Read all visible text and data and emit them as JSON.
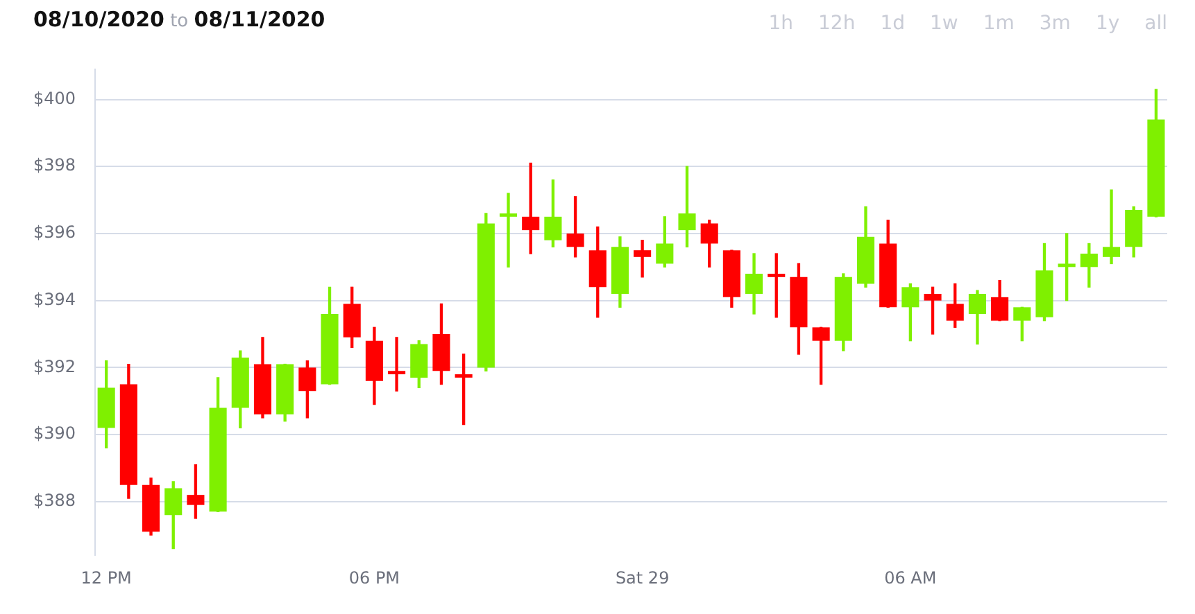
{
  "chart_data": {
    "type": "candlestick",
    "title": "08/10/2020 to 08/11/2020",
    "annotations": [
      "1h",
      "12h",
      "1d",
      "1w",
      "1m",
      "3m",
      "1y",
      "all"
    ],
    "categories": [
      "12 PM",
      null,
      null,
      null,
      null,
      null,
      null,
      null,
      null,
      null,
      null,
      null,
      "06 PM",
      null,
      null,
      null,
      null,
      null,
      null,
      null,
      null,
      null,
      null,
      null,
      "Sat 29",
      null,
      null,
      null,
      null,
      null,
      null,
      null,
      null,
      null,
      null,
      null,
      "06 AM",
      null,
      null,
      null,
      null,
      null,
      null,
      null,
      null,
      null,
      null,
      null
    ],
    "ohlc": [
      [
        390.2,
        392.2,
        389.6,
        391.4
      ],
      [
        391.5,
        392.1,
        388.1,
        388.5
      ],
      [
        388.5,
        388.7,
        387.0,
        387.1
      ],
      [
        387.6,
        388.6,
        386.6,
        388.4
      ],
      [
        388.2,
        389.1,
        387.5,
        387.9
      ],
      [
        387.7,
        391.7,
        387.7,
        390.8
      ],
      [
        390.8,
        392.5,
        390.2,
        392.3
      ],
      [
        392.1,
        392.9,
        390.5,
        390.6
      ],
      [
        390.6,
        392.1,
        390.4,
        392.1
      ],
      [
        392.0,
        392.2,
        390.5,
        391.3
      ],
      [
        391.5,
        394.4,
        391.5,
        393.6
      ],
      [
        393.9,
        394.4,
        392.6,
        392.9
      ],
      [
        392.8,
        393.2,
        390.9,
        391.6
      ],
      [
        391.9,
        392.9,
        391.3,
        391.8
      ],
      [
        391.7,
        392.8,
        391.4,
        392.7
      ],
      [
        393.0,
        393.9,
        391.5,
        391.9
      ],
      [
        391.8,
        392.4,
        390.3,
        391.7
      ],
      [
        392.0,
        396.6,
        391.9,
        396.3
      ],
      [
        396.5,
        397.2,
        395.0,
        396.6
      ],
      [
        396.5,
        398.1,
        395.4,
        396.1
      ],
      [
        395.8,
        397.6,
        395.6,
        396.5
      ],
      [
        396.0,
        397.1,
        395.3,
        395.6
      ],
      [
        395.5,
        396.2,
        393.5,
        394.4
      ],
      [
        394.2,
        395.9,
        393.8,
        395.6
      ],
      [
        395.5,
        395.8,
        394.7,
        395.3
      ],
      [
        395.1,
        396.5,
        395.0,
        395.7
      ],
      [
        396.1,
        398.0,
        395.6,
        396.6
      ],
      [
        396.3,
        396.4,
        395.0,
        395.7
      ],
      [
        395.5,
        395.5,
        393.8,
        394.1
      ],
      [
        394.2,
        395.4,
        393.6,
        394.8
      ],
      [
        394.8,
        395.4,
        393.5,
        394.7
      ],
      [
        394.7,
        395.1,
        392.4,
        393.2
      ],
      [
        393.2,
        393.2,
        391.5,
        392.8
      ],
      [
        392.8,
        394.8,
        392.5,
        394.7
      ],
      [
        394.5,
        396.8,
        394.4,
        395.9
      ],
      [
        395.7,
        396.4,
        393.8,
        393.8
      ],
      [
        393.8,
        394.5,
        392.8,
        394.4
      ],
      [
        394.2,
        394.4,
        393.0,
        394.0
      ],
      [
        393.9,
        394.5,
        393.2,
        393.4
      ],
      [
        393.6,
        394.3,
        392.7,
        394.2
      ],
      [
        394.1,
        394.6,
        393.4,
        393.4
      ],
      [
        393.4,
        393.8,
        392.8,
        393.8
      ],
      [
        393.5,
        395.7,
        393.4,
        394.9
      ],
      [
        395.0,
        396.0,
        394.0,
        395.1
      ],
      [
        395.0,
        395.7,
        394.4,
        395.4
      ],
      [
        395.3,
        397.3,
        395.1,
        395.6
      ],
      [
        395.6,
        396.8,
        395.3,
        396.7
      ],
      [
        396.5,
        400.3,
        396.5,
        399.4
      ]
    ],
    "colors": [
      "#7ff000",
      "#ff0000",
      "#ff0000",
      "#7ff000",
      "#ff0000",
      "#7ff000",
      "#7ff000",
      "#ff0000",
      "#7ff000",
      "#ff0000",
      "#7ff000",
      "#ff0000",
      "#ff0000",
      "#ff0000",
      "#7ff000",
      "#ff0000",
      "#ff0000",
      "#7ff000",
      "#7ff000",
      "#ff0000",
      "#7ff000",
      "#ff0000",
      "#ff0000",
      "#7ff000",
      "#ff0000",
      "#7ff000",
      "#7ff000",
      "#ff0000",
      "#ff0000",
      "#7ff000",
      "#ff0000",
      "#ff0000",
      "#ff0000",
      "#7ff000",
      "#7ff000",
      "#ff0000",
      "#7ff000",
      "#ff0000",
      "#ff0000",
      "#7ff000",
      "#ff0000",
      "#7ff000",
      "#7ff000",
      "#7ff000",
      "#7ff000",
      "#7ff000",
      "#7ff000",
      "#7ff000"
    ],
    "yticks": [
      {
        "value": 388,
        "label": "$388"
      },
      {
        "value": 390,
        "label": "$390"
      },
      {
        "value": 392,
        "label": "$392"
      },
      {
        "value": 394,
        "label": "$394"
      },
      {
        "value": 396,
        "label": "$396"
      },
      {
        "value": 398,
        "label": "$398"
      },
      {
        "value": 400,
        "label": "$400"
      }
    ],
    "ylim": [
      386.4,
      400.9
    ],
    "grid": "y",
    "legend": false
  }
}
